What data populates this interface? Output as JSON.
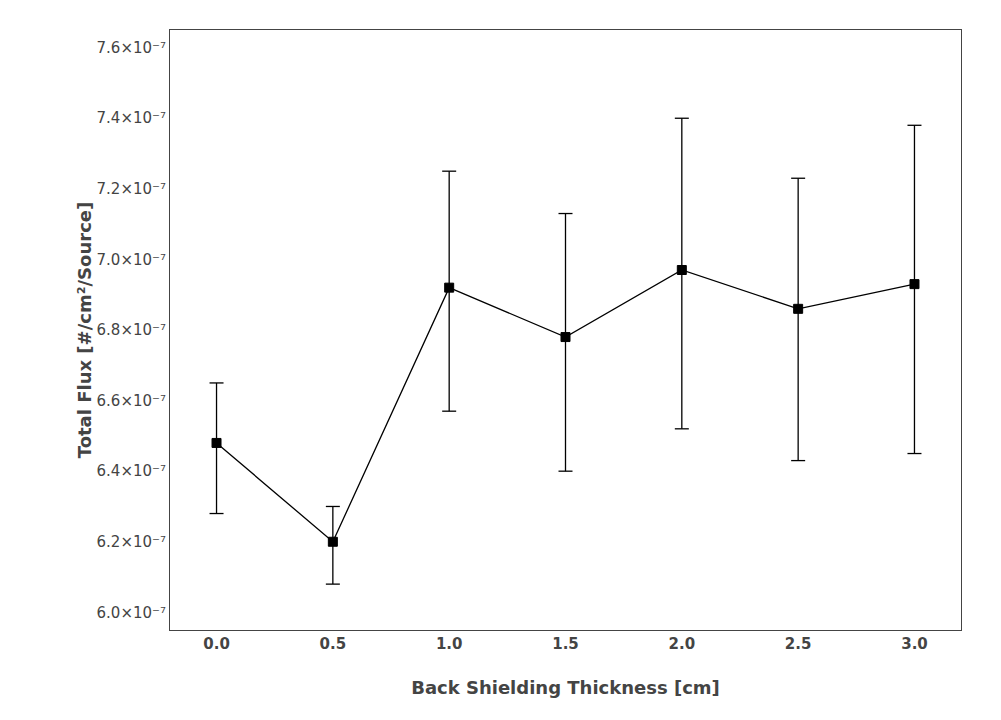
{
  "chart_data": {
    "type": "line",
    "x": [
      0.0,
      0.5,
      1.0,
      1.5,
      2.0,
      2.5,
      3.0
    ],
    "values": [
      6.48e-07,
      6.2e-07,
      6.92e-07,
      6.78e-07,
      6.97e-07,
      6.86e-07,
      6.93e-07
    ],
    "error_upper": [
      6.65e-07,
      6.3e-07,
      7.25e-07,
      7.13e-07,
      7.4e-07,
      7.23e-07,
      7.38e-07
    ],
    "error_lower": [
      6.28e-07,
      6.08e-07,
      6.57e-07,
      6.4e-07,
      6.52e-07,
      6.43e-07,
      6.45e-07
    ],
    "xlabel": "Back Shielding Thickness [cm]",
    "ylabel": "Total Flux [#/cm²/Source]",
    "xlim": [
      -0.2,
      3.2
    ],
    "ylim": [
      5.95e-07,
      7.65e-07
    ],
    "xticks": [
      {
        "value": 0.0,
        "label": "0.0"
      },
      0.5,
      {
        "value": 1.0,
        "label": "1.0"
      },
      1.5,
      {
        "value": 2.0,
        "label": "2.0"
      },
      2.5,
      {
        "value": 3.0,
        "label": "3.0"
      }
    ],
    "yticks": [
      {
        "value": 6e-07,
        "label": "6.0×10⁻⁷"
      },
      {
        "value": 6.2e-07,
        "label": "6.2×10⁻⁷"
      },
      {
        "value": 6.4e-07,
        "label": "6.4×10⁻⁷"
      },
      {
        "value": 6.6e-07,
        "label": "6.6×10⁻⁷"
      },
      {
        "value": 6.8e-07,
        "label": "6.8×10⁻⁷"
      },
      {
        "value": 7e-07,
        "label": "7.0×10⁻⁷"
      },
      {
        "value": 7.2e-07,
        "label": "7.2×10⁻⁷"
      },
      {
        "value": 7.4e-07,
        "label": "7.4×10⁻⁷"
      },
      {
        "value": 7.6e-07,
        "label": "7.6×10⁻⁷"
      }
    ],
    "color": "black",
    "marker": "square",
    "line_style": "solid",
    "grid": false
  }
}
